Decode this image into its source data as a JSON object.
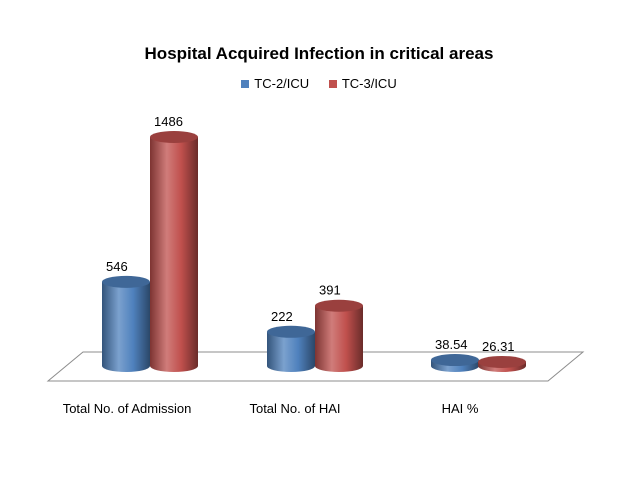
{
  "chart_data": {
    "type": "bar",
    "title": "Hospital Acquired Infection in critical areas",
    "categories": [
      "Total No. of Admission",
      "Total No. of HAI",
      "HAI %"
    ],
    "series": [
      {
        "name": "TC-2/ICU",
        "color": "#4f81bd",
        "values": [
          546,
          222,
          38.54
        ],
        "labels": [
          "546",
          "222",
          "38.54"
        ]
      },
      {
        "name": "TC-3/ICU",
        "color": "#c0504d",
        "values": [
          1486,
          391,
          26.31
        ],
        "labels": [
          "1486",
          "391",
          "26.31"
        ]
      }
    ],
    "ylim": [
      0,
      1486
    ],
    "legend": "top",
    "grid": false,
    "style": "3d-cylinder"
  }
}
